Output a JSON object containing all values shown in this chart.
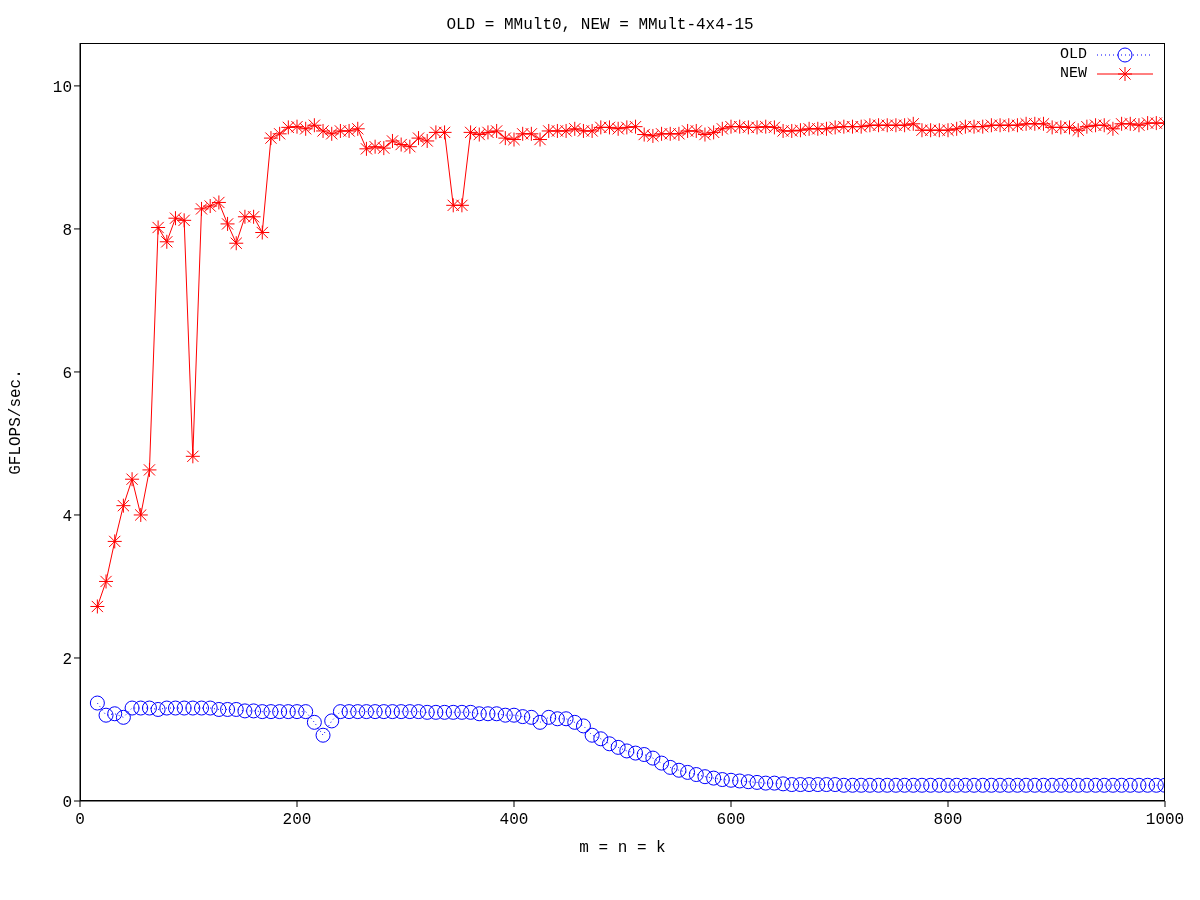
{
  "chart_data": {
    "type": "line",
    "title": "OLD = MMult0, NEW = MMult-4x4-15",
    "xlabel": "m = n = k",
    "ylabel": "GFLOPS/sec.",
    "x": [
      16,
      24,
      32,
      40,
      48,
      56,
      64,
      72,
      80,
      88,
      96,
      104,
      112,
      120,
      128,
      136,
      144,
      152,
      160,
      168,
      176,
      184,
      192,
      200,
      208,
      216,
      224,
      232,
      240,
      248,
      256,
      264,
      272,
      280,
      288,
      296,
      304,
      312,
      320,
      328,
      336,
      344,
      352,
      360,
      368,
      376,
      384,
      392,
      400,
      408,
      416,
      424,
      432,
      440,
      448,
      456,
      464,
      472,
      480,
      488,
      496,
      504,
      512,
      520,
      528,
      536,
      544,
      552,
      560,
      568,
      576,
      584,
      592,
      600,
      608,
      616,
      624,
      632,
      640,
      648,
      656,
      664,
      672,
      680,
      688,
      696,
      704,
      712,
      720,
      728,
      736,
      744,
      752,
      760,
      768,
      776,
      784,
      792,
      800,
      808,
      816,
      824,
      832,
      840,
      848,
      856,
      864,
      872,
      880,
      888,
      896,
      904,
      912,
      920,
      928,
      936,
      944,
      952,
      960,
      968,
      976,
      984,
      992,
      1000
    ],
    "series": [
      {
        "name": "OLD",
        "color": "#0000ff",
        "marker": "circle",
        "line_style": "dotted",
        "values": [
          1.37,
          1.2,
          1.22,
          1.17,
          1.3,
          1.3,
          1.3,
          1.28,
          1.3,
          1.3,
          1.3,
          1.3,
          1.3,
          1.3,
          1.28,
          1.28,
          1.28,
          1.26,
          1.26,
          1.25,
          1.25,
          1.25,
          1.25,
          1.25,
          1.25,
          1.1,
          0.92,
          1.12,
          1.25,
          1.25,
          1.25,
          1.25,
          1.25,
          1.25,
          1.25,
          1.25,
          1.25,
          1.25,
          1.24,
          1.24,
          1.24,
          1.24,
          1.24,
          1.24,
          1.22,
          1.22,
          1.22,
          1.2,
          1.2,
          1.18,
          1.17,
          1.1,
          1.17,
          1.15,
          1.15,
          1.1,
          1.05,
          0.92,
          0.87,
          0.8,
          0.75,
          0.7,
          0.67,
          0.65,
          0.6,
          0.53,
          0.47,
          0.43,
          0.4,
          0.37,
          0.34,
          0.32,
          0.3,
          0.29,
          0.28,
          0.27,
          0.26,
          0.25,
          0.25,
          0.24,
          0.23,
          0.23,
          0.23,
          0.23,
          0.23,
          0.23,
          0.22,
          0.22,
          0.22,
          0.22,
          0.22,
          0.22,
          0.22,
          0.22,
          0.22,
          0.22,
          0.22,
          0.22,
          0.22,
          0.22,
          0.22,
          0.22,
          0.22,
          0.22,
          0.22,
          0.22,
          0.22,
          0.22,
          0.22,
          0.22,
          0.22,
          0.22,
          0.22,
          0.22,
          0.22,
          0.22,
          0.22,
          0.22,
          0.22,
          0.22,
          0.22,
          0.22,
          0.22,
          0.22
        ]
      },
      {
        "name": "NEW",
        "color": "#ff0000",
        "marker": "cross",
        "line_style": "solid",
        "values": [
          2.72,
          3.07,
          3.63,
          4.13,
          4.5,
          4.0,
          4.63,
          8.02,
          7.82,
          8.15,
          8.12,
          4.82,
          8.28,
          8.32,
          8.37,
          8.07,
          7.8,
          8.17,
          8.17,
          7.95,
          9.27,
          9.33,
          9.42,
          9.43,
          9.4,
          9.45,
          9.37,
          9.33,
          9.37,
          9.37,
          9.4,
          9.12,
          9.15,
          9.13,
          9.23,
          9.18,
          9.15,
          9.27,
          9.23,
          9.35,
          9.35,
          8.33,
          8.33,
          9.35,
          9.32,
          9.35,
          9.37,
          9.27,
          9.25,
          9.33,
          9.33,
          9.25,
          9.37,
          9.37,
          9.37,
          9.4,
          9.37,
          9.37,
          9.42,
          9.42,
          9.4,
          9.42,
          9.43,
          9.32,
          9.3,
          9.33,
          9.33,
          9.33,
          9.37,
          9.37,
          9.32,
          9.35,
          9.4,
          9.43,
          9.43,
          9.42,
          9.42,
          9.43,
          9.42,
          9.37,
          9.37,
          9.38,
          9.4,
          9.4,
          9.4,
          9.42,
          9.43,
          9.43,
          9.43,
          9.45,
          9.45,
          9.45,
          9.45,
          9.45,
          9.47,
          9.38,
          9.38,
          9.38,
          9.38,
          9.4,
          9.43,
          9.43,
          9.43,
          9.45,
          9.45,
          9.45,
          9.45,
          9.47,
          9.47,
          9.47,
          9.42,
          9.42,
          9.42,
          9.38,
          9.43,
          9.45,
          9.45,
          9.4,
          9.47,
          9.47,
          9.45,
          9.48,
          9.48,
          9.48
        ]
      }
    ],
    "xlim": [
      0,
      1000
    ],
    "xticks": [
      0,
      200,
      400,
      600,
      800,
      1000
    ],
    "ylim": [
      0,
      10.6
    ],
    "yticks": [
      0,
      2,
      4,
      6,
      8,
      10
    ],
    "grid": false,
    "legend": "top right"
  }
}
